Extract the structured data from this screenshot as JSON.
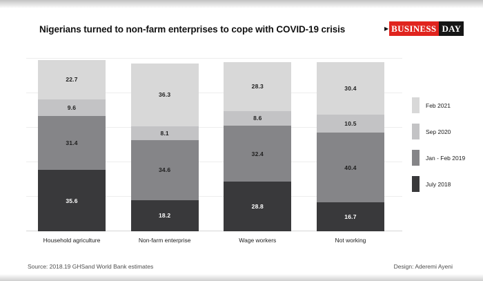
{
  "header": {
    "title": "Nigerians turned to non-farm enterprises to cope with COVID-19 crisis",
    "logo": {
      "arrow": "▶",
      "part1": "BUSINESS",
      "part2": "DAY",
      "red_color": "#e0241e",
      "black_color": "#161616"
    }
  },
  "chart_data": {
    "type": "bar",
    "stacked": true,
    "title": "Nigerians turned to non-farm enterprises to cope with COVID-19 crisis",
    "categories": [
      "Household agriculture",
      "Non-farm enterprise",
      "Wage workers",
      "Not working"
    ],
    "series": [
      {
        "name": "July 2018",
        "color": "#39393b",
        "label_color": "#ffffff",
        "values": [
          35.6,
          18.2,
          28.8,
          16.7
        ]
      },
      {
        "name": "Jan - Feb 2019",
        "color": "#858588",
        "label_color": "#1d1d1d",
        "values": [
          31.4,
          34.6,
          32.4,
          40.4
        ]
      },
      {
        "name": "Sep 2020",
        "color": "#c3c3c5",
        "label_color": "#1d1d1d",
        "values": [
          9.6,
          8.1,
          8.6,
          10.5
        ]
      },
      {
        "name": "Feb 2021",
        "color": "#d8d8d8",
        "label_color": "#1d1d1d",
        "values": [
          22.7,
          36.3,
          28.3,
          30.4
        ]
      }
    ],
    "legend_order": [
      "Feb 2021",
      "Sep 2020",
      "Jan - Feb 2019",
      "July 2018"
    ],
    "legend_position": "right",
    "ylim": [
      0,
      100
    ],
    "gridline_values": [
      0,
      20,
      40,
      60,
      80,
      100
    ],
    "grid": true,
    "xlabel": "",
    "ylabel": ""
  },
  "footer": {
    "source": "Source: 2018.19 GHSand World Bank estimates",
    "design": "Design: Aderemi Ayeni"
  }
}
